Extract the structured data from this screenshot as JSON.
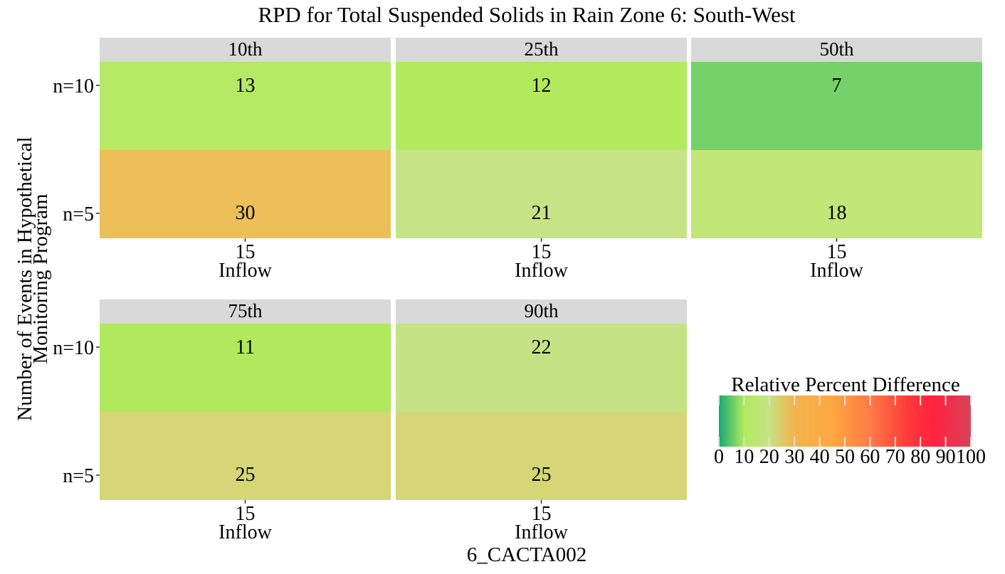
{
  "chart_data": {
    "type": "heatmap",
    "title": "RPD for Total Suspended Solids in Rain Zone 6: South-West",
    "xlabel": "6_CACTA002",
    "ylabel_lines": [
      "Number of Events in Hypothetical",
      "Monitoring Program"
    ],
    "rows": [
      "n=10",
      "n=5"
    ],
    "x_tick": "15",
    "x_sublabel": "Inflow",
    "panels": [
      {
        "label": "10th",
        "values": {
          "n=10": 13,
          "n=5": 30
        }
      },
      {
        "label": "25th",
        "values": {
          "n=10": 12,
          "n=5": 21
        }
      },
      {
        "label": "50th",
        "values": {
          "n=10": 7,
          "n=5": 18
        }
      },
      {
        "label": "75th",
        "values": {
          "n=10": 11,
          "n=5": 25
        }
      },
      {
        "label": "90th",
        "values": {
          "n=10": 22,
          "n=5": 25
        }
      }
    ],
    "legend": {
      "title": "Relative Percent Difference",
      "ticks": [
        0,
        10,
        20,
        30,
        40,
        50,
        60,
        70,
        80,
        90,
        100
      ],
      "range": [
        0,
        100
      ]
    },
    "cell_colors": {
      "7": "#77d16a",
      "11": "#b0e85e",
      "12": "#b2ea5e",
      "13": "#b5e966",
      "18": "#c2e678",
      "21": "#c6e486",
      "22": "#c5e384",
      "25": "#d5d676",
      "30": "#ecbf59"
    },
    "color_stops": [
      {
        "v": 0,
        "c": "#18a974"
      },
      {
        "v": 10,
        "c": "#b1ea5e"
      },
      {
        "v": 20,
        "c": "#c7e384"
      },
      {
        "v": 30,
        "c": "#f3b34e"
      },
      {
        "v": 45,
        "c": "#ffa840"
      },
      {
        "v": 60,
        "c": "#ff7b46"
      },
      {
        "v": 75,
        "c": "#ff3a3a"
      },
      {
        "v": 85,
        "c": "#ff2240"
      },
      {
        "v": 100,
        "c": "#d8425a"
      }
    ],
    "strip_color": "#d9d9d9"
  }
}
